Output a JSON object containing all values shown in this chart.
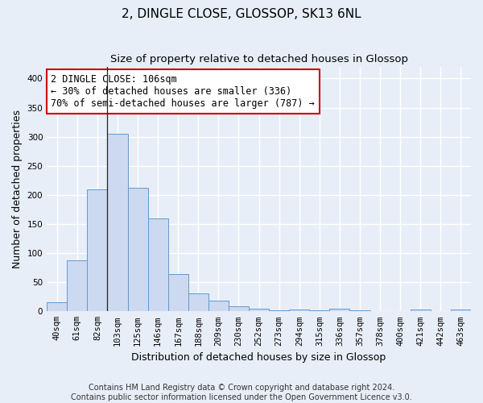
{
  "title": "2, DINGLE CLOSE, GLOSSOP, SK13 6NL",
  "subtitle": "Size of property relative to detached houses in Glossop",
  "xlabel": "Distribution of detached houses by size in Glossop",
  "ylabel": "Number of detached properties",
  "bar_values": [
    15,
    88,
    210,
    305,
    213,
    160,
    64,
    31,
    18,
    9,
    5,
    2,
    3,
    2,
    4,
    2,
    1,
    1,
    3,
    0,
    3
  ],
  "bar_labels": [
    "40sqm",
    "61sqm",
    "82sqm",
    "103sqm",
    "125sqm",
    "146sqm",
    "167sqm",
    "188sqm",
    "209sqm",
    "230sqm",
    "252sqm",
    "273sqm",
    "294sqm",
    "315sqm",
    "336sqm",
    "357sqm",
    "378sqm",
    "400sqm",
    "421sqm",
    "442sqm",
    "463sqm"
  ],
  "bar_color": "#ccd9f0",
  "bar_edge_color": "#6699cc",
  "background_color": "#e8eef8",
  "grid_color": "#ffffff",
  "annotation_text": "2 DINGLE CLOSE: 106sqm\n← 30% of detached houses are smaller (336)\n70% of semi-detached houses are larger (787) →",
  "annotation_box_color": "#ffffff",
  "annotation_box_edge": "#cc0000",
  "vline_x_index": 3.0,
  "ylim": [
    0,
    420
  ],
  "yticks": [
    0,
    50,
    100,
    150,
    200,
    250,
    300,
    350,
    400
  ],
  "footer_text": "Contains HM Land Registry data © Crown copyright and database right 2024.\nContains public sector information licensed under the Open Government Licence v3.0.",
  "title_fontsize": 11,
  "subtitle_fontsize": 9.5,
  "xlabel_fontsize": 9,
  "ylabel_fontsize": 9,
  "tick_fontsize": 7.5,
  "annotation_fontsize": 8.5,
  "footer_fontsize": 7
}
